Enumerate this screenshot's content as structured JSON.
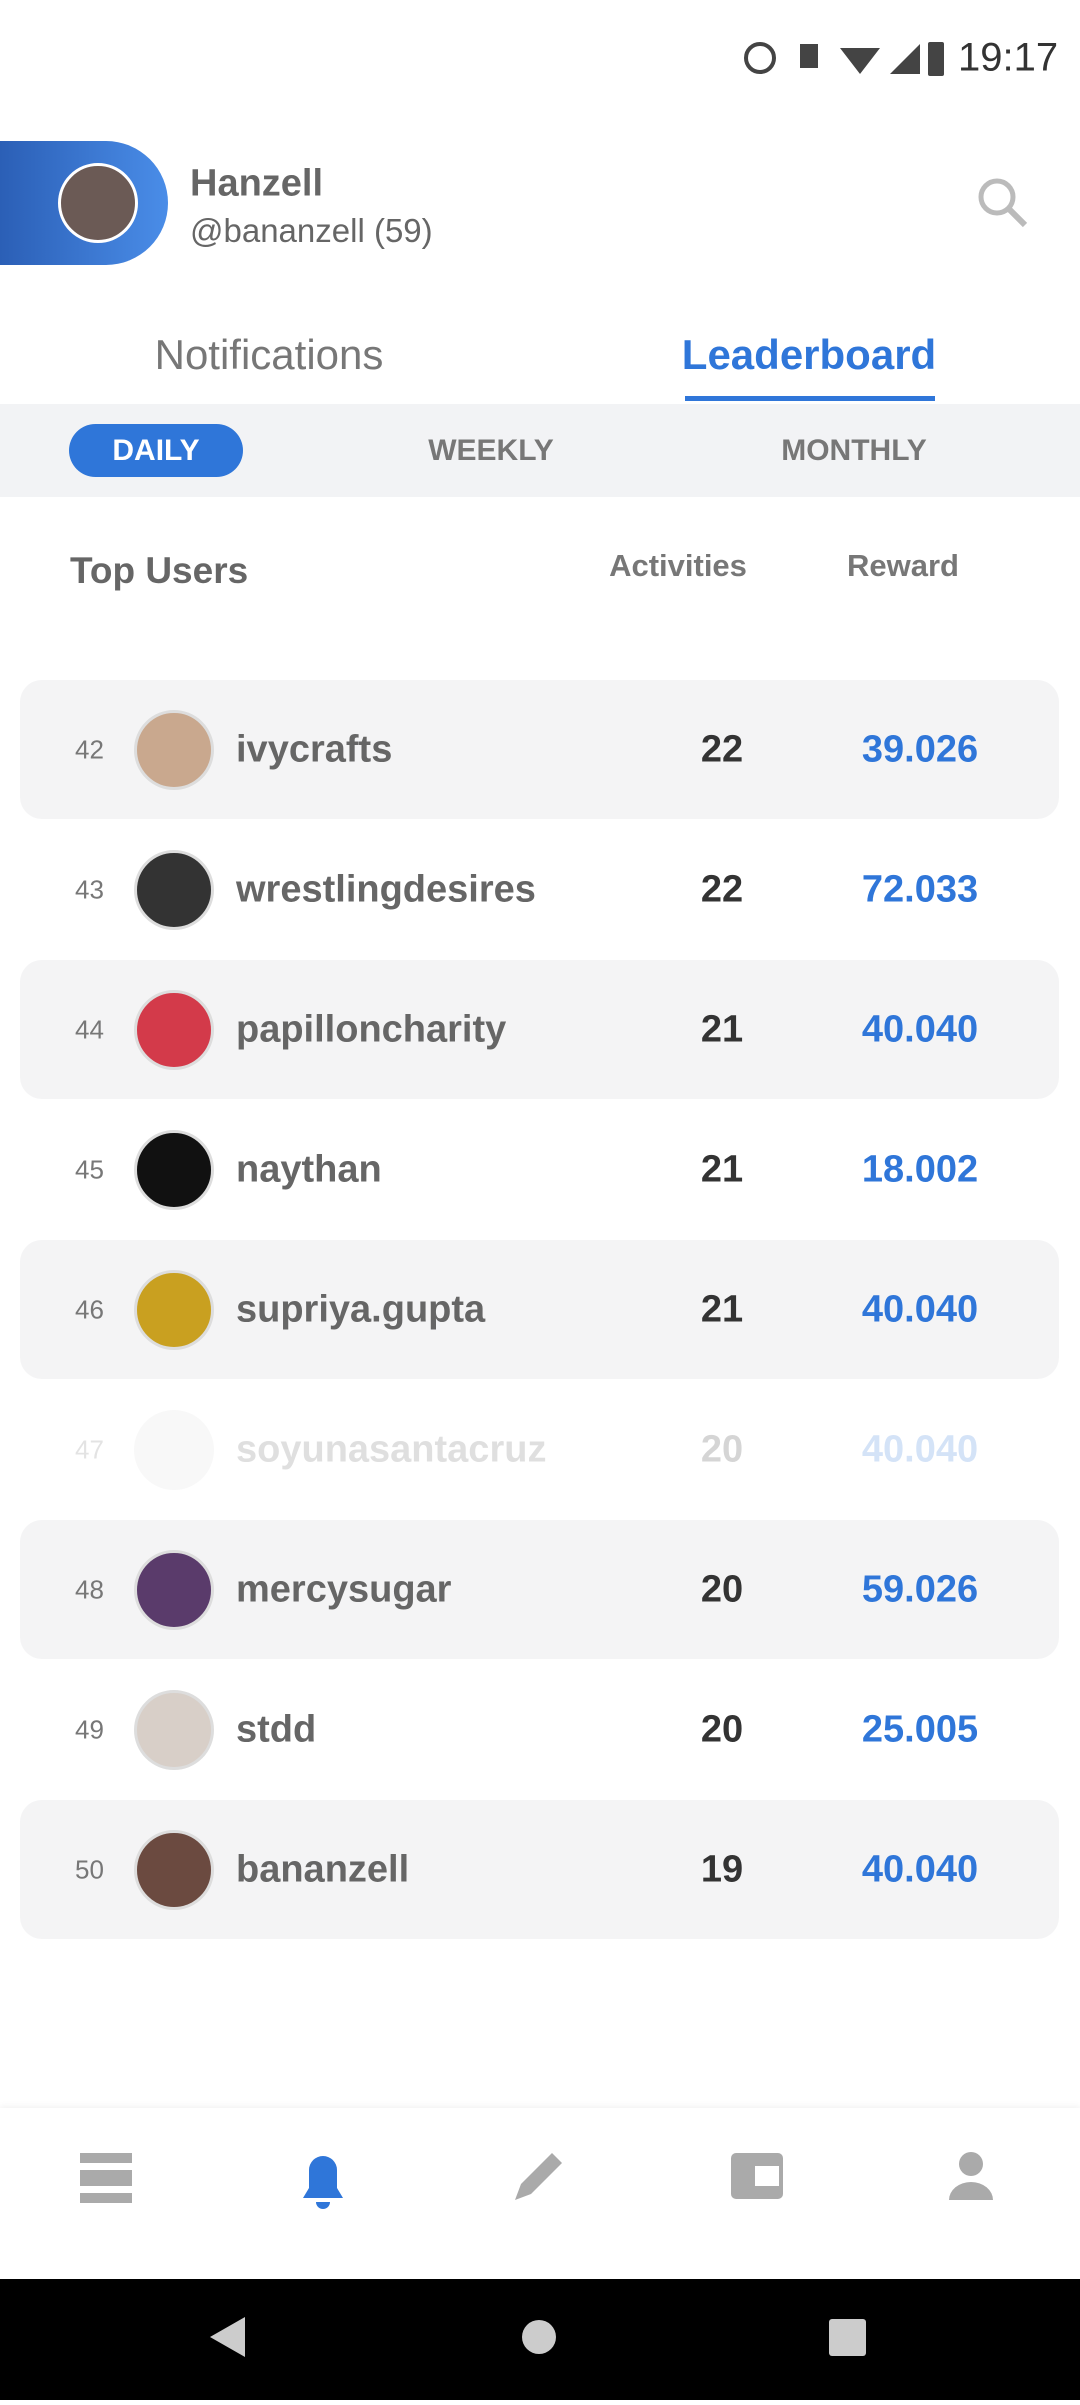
{
  "status_bar": {
    "time": "19:17"
  },
  "header": {
    "name": "Hanzell",
    "handle": "@bananzell (59)"
  },
  "tabs": [
    "Notifications",
    "Leaderboard"
  ],
  "periods": [
    "DAILY",
    "WEEKLY",
    "MONTHLY"
  ],
  "columns": [
    "Top Users",
    "Activities",
    "Reward"
  ],
  "rows": [
    {
      "rank": 42,
      "name": "ivycrafts",
      "activities": 22,
      "reward": "39.026"
    },
    {
      "rank": 43,
      "name": "wrestlingdesires",
      "activities": 22,
      "reward": "72.033"
    },
    {
      "rank": 44,
      "name": "papilloncharity",
      "activities": 21,
      "reward": "40.040"
    },
    {
      "rank": 45,
      "name": "naythan",
      "activities": 21,
      "reward": "18.002"
    },
    {
      "rank": 46,
      "name": "supriya.gupta",
      "activities": 21,
      "reward": "40.040"
    },
    {
      "rank": 47,
      "name": "soyunasantacruz",
      "activities": 20,
      "reward": "40.040"
    },
    {
      "rank": 48,
      "name": "mercysugar",
      "activities": 20,
      "reward": "59.026"
    },
    {
      "rank": 49,
      "name": "stdd",
      "activities": 20,
      "reward": "25.005"
    },
    {
      "rank": 50,
      "name": "bananzell",
      "activities": 19,
      "reward": "40.040"
    }
  ]
}
